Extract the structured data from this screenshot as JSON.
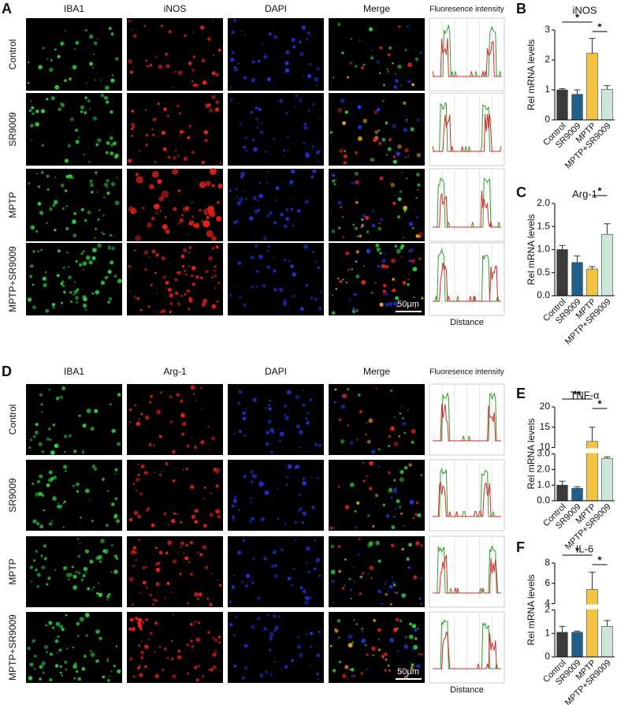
{
  "figure": [
    {
      "panel": "A",
      "columns": [
        "IBA1",
        "iNOS",
        "DAPI",
        "Merge",
        "Fluoresence intensity"
      ],
      "rows": [
        "Control",
        "SR9009",
        "MPTP",
        "MPTP+SR9009"
      ],
      "scale_bar": "50μm",
      "profile_axis": "Distance"
    },
    {
      "panel": "D",
      "columns": [
        "IBA1",
        "Arg-1",
        "DAPI",
        "Merge",
        "Fluoresence intensity"
      ],
      "rows": [
        "Control",
        "SR9009",
        "MPTP",
        "MPTP+SR9009"
      ],
      "scale_bar": "50μm",
      "profile_axis": "Distance"
    }
  ],
  "chart_data": [
    {
      "type": "bar",
      "panel": "B",
      "title": "iNOS",
      "ylabel": "Rel mRNA levels",
      "categories": [
        "Control",
        "SR9009",
        "MPTP",
        "MPTP+SR9009"
      ],
      "values": [
        1.0,
        0.85,
        2.22,
        1.02
      ],
      "errors": [
        0.04,
        0.15,
        0.5,
        0.12
      ],
      "colors": [
        "#3a3a3a",
        "#1f5f8b",
        "#f5c342",
        "#cde8d8"
      ],
      "ylim": [
        0,
        3
      ],
      "yticks": [
        0,
        1,
        2,
        3
      ],
      "significance": [
        {
          "label": "*",
          "between": [
            "Control",
            "MPTP"
          ]
        },
        {
          "label": "*",
          "between": [
            "MPTP",
            "MPTP+SR9009"
          ]
        }
      ]
    },
    {
      "type": "bar",
      "panel": "C",
      "title": "Arg-1",
      "ylabel": "Rel mRNA levels",
      "categories": [
        "Control",
        "SR9009",
        "MPTP",
        "MPTP+SR9009"
      ],
      "values": [
        1.0,
        0.72,
        0.58,
        1.33
      ],
      "errors": [
        0.09,
        0.14,
        0.05,
        0.23
      ],
      "colors": [
        "#3a3a3a",
        "#1f5f8b",
        "#f5c342",
        "#cde8d8"
      ],
      "ylim": [
        0,
        2
      ],
      "yticks": [
        {
          "value": 0,
          "label": "0.0"
        },
        {
          "value": 0.5,
          "label": "0.5"
        },
        {
          "value": 1,
          "label": "1.0"
        },
        {
          "value": 1.5,
          "label": "1.5"
        },
        {
          "value": 2,
          "label": "2.0"
        }
      ],
      "significance": [
        {
          "label": "*",
          "between": [
            "MPTP",
            "MPTP+SR9009"
          ]
        }
      ]
    },
    {
      "type": "bar",
      "panel": "E",
      "title": "TNF-α",
      "ylabel": "Rel mRNA levels",
      "categories": [
        "Control",
        "SR9009",
        "MPTP",
        "MPTP+SR9009"
      ],
      "values": [
        1.0,
        0.8,
        11.5,
        2.7
      ],
      "errors": [
        0.25,
        0.1,
        3.5,
        0.1
      ],
      "colors": [
        "#3a3a3a",
        "#1f5f8b",
        "#f5c342",
        "#cde8d8"
      ],
      "ylim": [
        0,
        20
      ],
      "axis_break": [
        3,
        10
      ],
      "yticks": [
        {
          "value": 0,
          "label": "0.0"
        },
        {
          "value": 1,
          "label": "1.0"
        },
        {
          "value": 2,
          "label": "2.0"
        },
        {
          "value": 3,
          "label": "3.0"
        },
        10,
        15,
        20
      ],
      "significance": [
        {
          "label": "**",
          "between": [
            "Control",
            "MPTP"
          ]
        },
        {
          "label": "*",
          "between": [
            "MPTP",
            "MPTP+SR9009"
          ]
        }
      ]
    },
    {
      "type": "bar",
      "panel": "F",
      "title": "IL-6",
      "ylabel": "Rel mRNA levels",
      "categories": [
        "Control",
        "SR9009",
        "MPTP",
        "MPTP+SR9009"
      ],
      "values": [
        1.05,
        1.05,
        5.4,
        1.3
      ],
      "errors": [
        0.25,
        0.05,
        1.7,
        0.25
      ],
      "colors": [
        "#3a3a3a",
        "#1f5f8b",
        "#f5c342",
        "#cde8d8"
      ],
      "ylim": [
        0,
        8
      ],
      "axis_break": [
        2,
        4
      ],
      "yticks": [
        0,
        1,
        2,
        4,
        6,
        8
      ],
      "significance": [
        {
          "label": "*",
          "between": [
            "Control",
            "MPTP"
          ]
        },
        {
          "label": "*",
          "between": [
            "MPTP",
            "MPTP+SR9009"
          ]
        }
      ]
    }
  ]
}
